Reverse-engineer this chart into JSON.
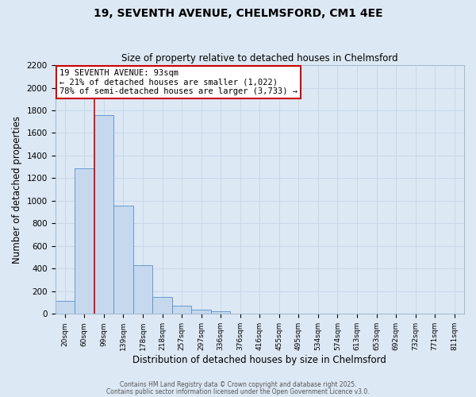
{
  "title_line1": "19, SEVENTH AVENUE, CHELMSFORD, CM1 4EE",
  "title_line2": "Size of property relative to detached houses in Chelmsford",
  "xlabel": "Distribution of detached houses by size in Chelmsford",
  "ylabel": "Number of detached properties",
  "bar_labels": [
    "20sqm",
    "60sqm",
    "99sqm",
    "139sqm",
    "178sqm",
    "218sqm",
    "257sqm",
    "297sqm",
    "336sqm",
    "376sqm",
    "416sqm",
    "455sqm",
    "495sqm",
    "534sqm",
    "574sqm",
    "613sqm",
    "653sqm",
    "692sqm",
    "732sqm",
    "771sqm",
    "811sqm"
  ],
  "bar_values": [
    115,
    1285,
    1760,
    960,
    430,
    150,
    75,
    35,
    20,
    0,
    0,
    0,
    0,
    0,
    0,
    0,
    0,
    0,
    0,
    0,
    0
  ],
  "bar_color": "#c5d8ee",
  "bar_edge_color": "#5b8fc9",
  "vline_color": "#dd0000",
  "annotation_title": "19 SEVENTH AVENUE: 93sqm",
  "annotation_line1": "← 21% of detached houses are smaller (1,022)",
  "annotation_line2": "78% of semi-detached houses are larger (3,733) →",
  "annotation_box_facecolor": "#ffffff",
  "annotation_box_edgecolor": "#cc0000",
  "ylim": [
    0,
    2200
  ],
  "yticks": [
    0,
    200,
    400,
    600,
    800,
    1000,
    1200,
    1400,
    1600,
    1800,
    2000,
    2200
  ],
  "grid_color": "#c8d8ea",
  "bg_color": "#dce8f4",
  "footnote1": "Contains HM Land Registry data © Crown copyright and database right 2025.",
  "footnote2": "Contains public sector information licensed under the Open Government Licence v3.0."
}
